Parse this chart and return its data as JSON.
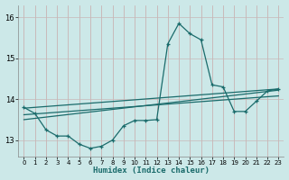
{
  "background_color": "#cce8e8",
  "grid_color": "#b8d8d8",
  "line_color": "#1a6b6b",
  "xlabel": "Humidex (Indice chaleur)",
  "xlim": [
    -0.5,
    23.5
  ],
  "ylim": [
    12.6,
    16.3
  ],
  "yticks": [
    13,
    14,
    15,
    16
  ],
  "xticks": [
    0,
    1,
    2,
    3,
    4,
    5,
    6,
    7,
    8,
    9,
    10,
    11,
    12,
    13,
    14,
    15,
    16,
    17,
    18,
    19,
    20,
    21,
    22,
    23
  ],
  "curve1": [
    [
      0,
      13.8
    ],
    [
      1,
      13.65
    ],
    [
      2,
      13.25
    ],
    [
      3,
      13.1
    ],
    [
      4,
      13.1
    ],
    [
      5,
      12.9
    ],
    [
      6,
      12.8
    ],
    [
      7,
      12.85
    ],
    [
      8,
      13.0
    ],
    [
      9,
      13.35
    ],
    [
      10,
      13.48
    ],
    [
      11,
      13.48
    ],
    [
      12,
      13.5
    ],
    [
      13,
      15.35
    ],
    [
      14,
      15.85
    ],
    [
      15,
      15.6
    ],
    [
      16,
      15.45
    ],
    [
      17,
      14.35
    ],
    [
      18,
      14.3
    ],
    [
      19,
      13.7
    ],
    [
      20,
      13.7
    ],
    [
      21,
      13.95
    ],
    [
      22,
      14.2
    ],
    [
      23,
      14.25
    ]
  ],
  "line1": [
    [
      0,
      13.78
    ],
    [
      23,
      14.25
    ]
  ],
  "line2": [
    [
      0,
      13.62
    ],
    [
      23,
      14.08
    ]
  ],
  "line3": [
    [
      0,
      13.5
    ],
    [
      23,
      14.22
    ]
  ]
}
